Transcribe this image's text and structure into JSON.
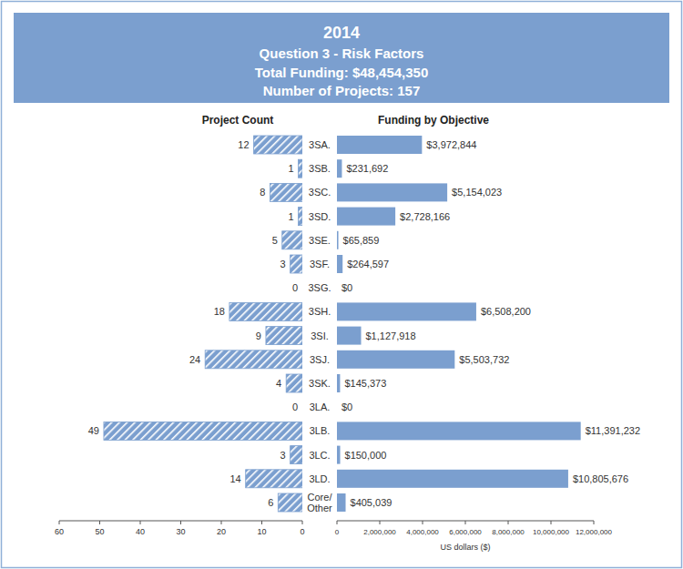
{
  "header": {
    "title": "2014",
    "subtitle": [
      "Question 3 - Risk Factors",
      "Total Funding: $48,454,350",
      "Number of Projects: 157"
    ]
  },
  "chart_data": [
    {
      "type": "bar",
      "orientation": "horizontal",
      "title": "Project Count",
      "categories": [
        "3SA.",
        "3SB.",
        "3SC.",
        "3SD.",
        "3SE.",
        "3SF.",
        "3SG.",
        "3SH.",
        "3SI.",
        "3SJ.",
        "3SK.",
        "3LA.",
        "3LB.",
        "3LC.",
        "3LD.",
        "Core/ Other"
      ],
      "values": [
        12,
        1,
        8,
        1,
        5,
        3,
        0,
        18,
        9,
        24,
        4,
        0,
        49,
        3,
        14,
        6
      ],
      "color": "#7b9fcf",
      "xlim": [
        0,
        60
      ],
      "xticks": [
        0,
        10,
        20,
        30,
        40,
        50,
        60
      ],
      "data_labels": true,
      "grid": false
    },
    {
      "type": "bar",
      "orientation": "horizontal",
      "title": "Funding by Objective",
      "values": [
        3972844,
        231692,
        5154023,
        2728166,
        65859,
        264597,
        0,
        6508200,
        1127918,
        5503732,
        145373,
        0,
        11391232,
        150000,
        10805676,
        405039
      ],
      "value_labels": [
        "$3,972,844",
        "$231,692",
        "$5,154,023",
        "$2,728,166",
        "$65,859",
        "$264,597",
        "$0",
        "$6,508,200",
        "$1,127,918",
        "$5,503,732",
        "$145,373",
        "$0",
        "$11,391,232",
        "$150,000",
        "$10,805,676",
        "$405,039"
      ],
      "color": "#7b9fcf",
      "xlabel": "US dollars ($)",
      "xlim": [
        0,
        12000000
      ],
      "xticks": [
        0,
        {
          "value": 2000000,
          "label": "2,000,000"
        },
        {
          "value": 4000000,
          "label": "4,000,000"
        },
        {
          "value": 6000000,
          "label": "6,000,000"
        },
        {
          "value": 8000000,
          "label": "8,000,000"
        },
        {
          "value": 10000000,
          "label": "10,000,000"
        },
        {
          "value": 12000000,
          "label": "12,000,000"
        }
      ],
      "data_labels": true,
      "grid": false
    }
  ]
}
